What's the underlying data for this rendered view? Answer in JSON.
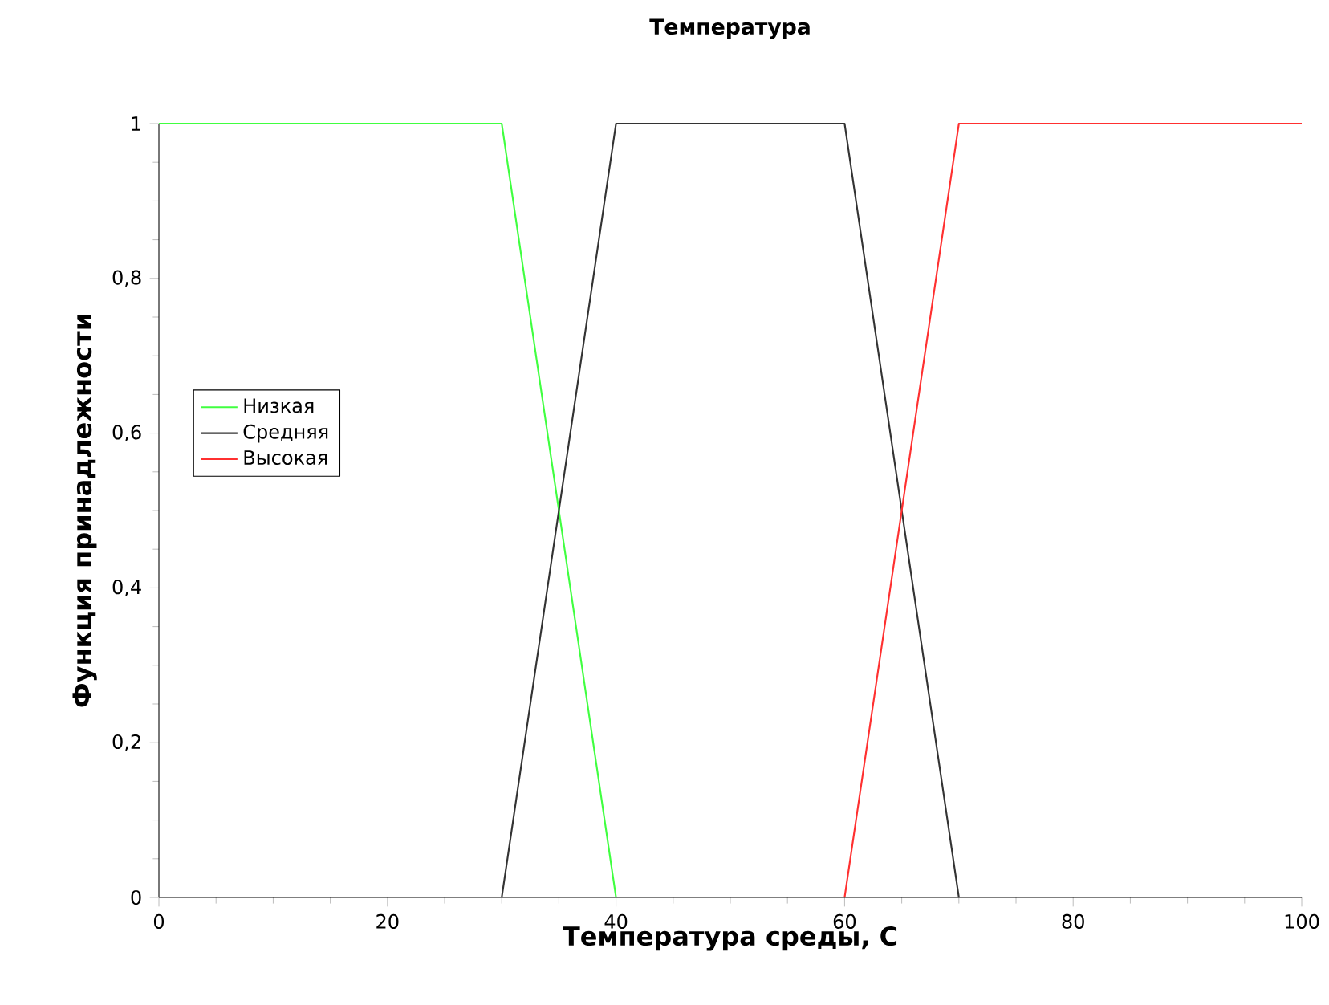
{
  "chart_data": {
    "type": "line",
    "title": "Температура",
    "xlabel": "Температура среды, С",
    "ylabel": "Функция принадлежности",
    "xlim": [
      0,
      100
    ],
    "xticks": [
      0,
      20,
      40,
      60,
      80,
      100
    ],
    "ylim": [
      0,
      1
    ],
    "yticks": [
      0,
      {
        "value": 0.2,
        "label": "0,2"
      },
      {
        "value": 0.4,
        "label": "0,4"
      },
      {
        "value": 0.6,
        "label": "0,6"
      },
      {
        "value": 0.8,
        "label": "0,8"
      },
      1
    ],
    "grid": false,
    "legend": "left",
    "marker": "none",
    "line_style": "solid",
    "series": [
      {
        "name": "Низкая",
        "color": "#40ff40",
        "x": [
          0,
          30,
          40
        ],
        "values": [
          1,
          1,
          0
        ]
      },
      {
        "name": "Средняя",
        "color": "#333333",
        "x": [
          30,
          40,
          60,
          70
        ],
        "values": [
          0,
          1,
          1,
          0
        ]
      },
      {
        "name": "Высокая",
        "color": "#ff3030",
        "x": [
          60,
          70,
          100
        ],
        "values": [
          0,
          1,
          1
        ]
      }
    ]
  }
}
